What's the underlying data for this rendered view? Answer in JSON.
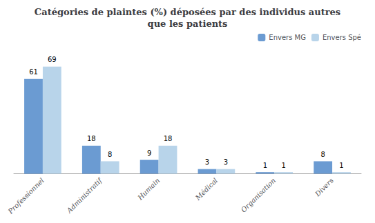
{
  "chart_data": {
    "type": "bar",
    "title": "Catégories de plaintes (%) déposées par des individus autres\nque les patients",
    "categories": [
      "Professionnel",
      "Administratif",
      "Humain",
      "Médical",
      "Organisation",
      "Divers"
    ],
    "series": [
      {
        "name": "Envers MG",
        "color": "#6B9BD2",
        "values": [
          61,
          18,
          9,
          3,
          1,
          8
        ]
      },
      {
        "name": "Envers Spé",
        "color": "#B8D4EA",
        "values": [
          69,
          8,
          18,
          3,
          1,
          1
        ]
      }
    ],
    "ylim": [
      0,
      80
    ],
    "grid": false,
    "legend": "upper right",
    "data_labels": true,
    "tick_labels": "x"
  }
}
